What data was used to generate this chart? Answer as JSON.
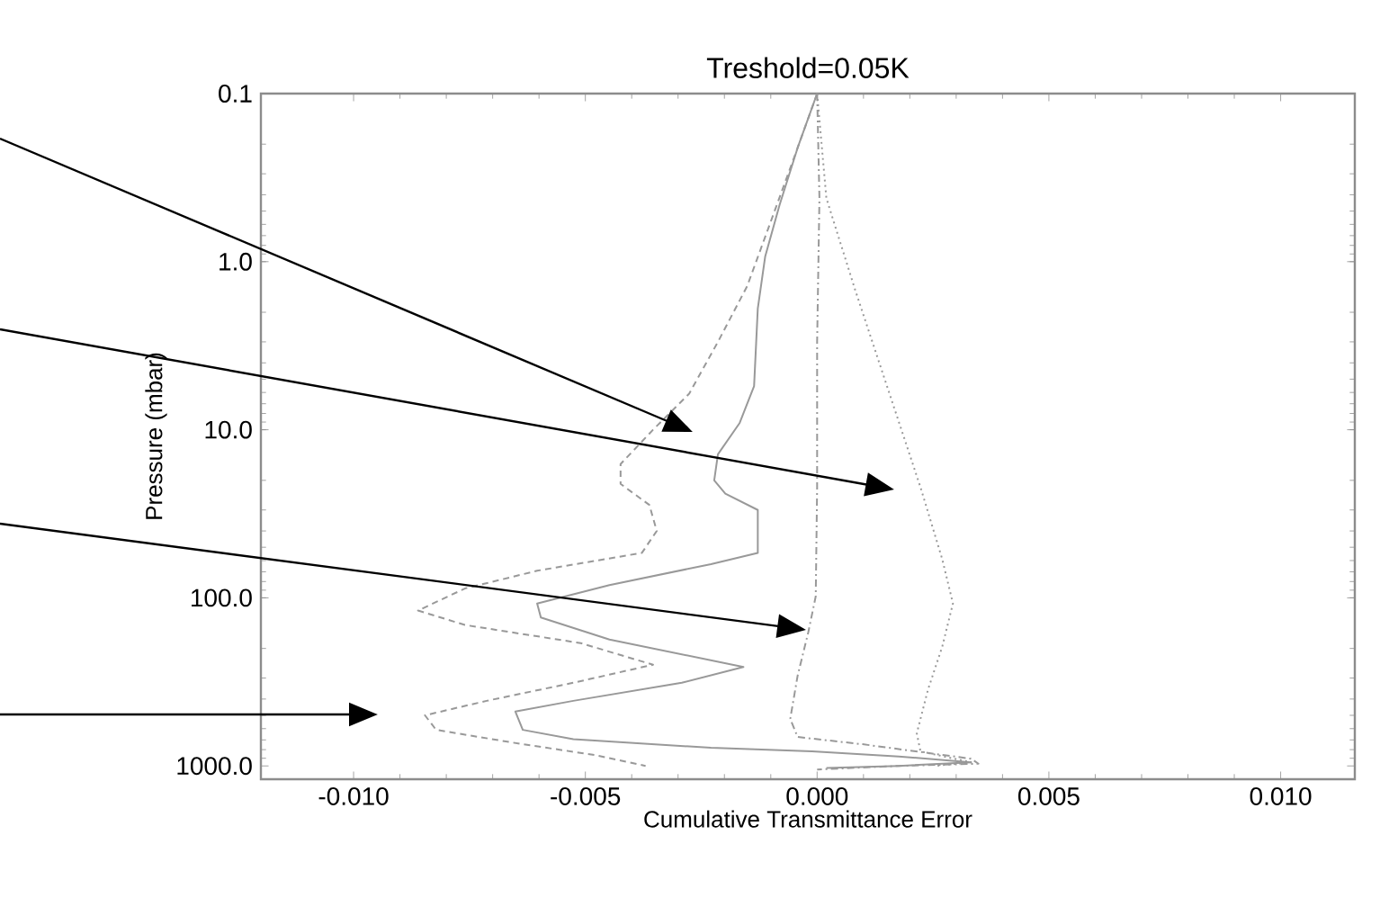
{
  "chart_data": {
    "type": "line",
    "title": "Treshold=0.05K",
    "xlabel": "Cumulative Transmittance Error",
    "ylabel": "Pressure (mbar)",
    "log": "y",
    "xlim": [
      -0.012,
      0.0116
    ],
    "ylim": [
      1200,
      0.1
    ],
    "xticks": [
      {
        "value": -0.01,
        "label": "-0.010"
      },
      {
        "value": -0.005,
        "label": "-0.005"
      },
      {
        "value": 0,
        "label": "0.000"
      },
      {
        "value": 0.005,
        "label": "0.005"
      },
      {
        "value": 0.01,
        "label": "0.010"
      }
    ],
    "yticks": [
      0.1,
      {
        "value": 1,
        "label": "1.0"
      },
      {
        "value": 10,
        "label": "10.0"
      },
      {
        "value": 100,
        "label": "100.0"
      },
      {
        "value": 1000,
        "label": "1000.0"
      }
    ],
    "series": [
      {
        "color": "#999999",
        "line_style": "solid",
        "x": [
          0,
          -0.00042,
          -0.00081,
          -0.00112,
          -0.00128,
          -0.00136,
          -0.00167,
          -0.00214,
          -0.00222,
          -0.00198,
          -0.00128,
          -0.00128,
          -0.00229,
          -0.00448,
          -0.00604,
          -0.00596,
          -0.00448,
          -0.00159,
          -0.00292,
          -0.00526,
          -0.00651,
          -0.00635,
          -0.00526,
          -0.00229,
          -0.00011,
          0.00176,
          0.00332,
          0.00176,
          0.0002
        ],
        "values": [
          0.1,
          0.21,
          0.46,
          0.93,
          1.9,
          5.5,
          9.1,
          14,
          20,
          24,
          30,
          54,
          63,
          84,
          108,
          131,
          177,
          258,
          320,
          410,
          475,
          610,
          693,
          780,
          820,
          879,
          951,
          1000,
          1030
        ]
      },
      {
        "color": "#999999",
        "line_style": "dashed",
        "x": [
          0,
          -0.00042,
          -0.00105,
          -0.00151,
          -0.00214,
          -0.00276,
          -0.00354,
          -0.00424,
          -0.00424,
          -0.00362,
          -0.00346,
          -0.00378,
          -0.00604,
          -0.0076,
          -0.00861,
          -0.0076,
          -0.0051,
          -0.00354,
          -0.00526,
          -0.00713,
          -0.00846,
          -0.00822,
          -0.00635,
          -0.00479,
          -0.0037
        ],
        "values": [
          0.1,
          0.21,
          0.63,
          1.4,
          3.0,
          6.1,
          10,
          16,
          21,
          28,
          40,
          54,
          69,
          88,
          119,
          145,
          186,
          250,
          320,
          410,
          500,
          610,
          743,
          861,
          1000
        ]
      },
      {
        "color": "#999999",
        "line_style": "dashdot",
        "x": [
          0,
          5e-05,
          0,
          0,
          -3e-05,
          -0.00019,
          -0.00042,
          -0.00058,
          -0.00042,
          0.00098,
          0.00332,
          0.00348,
          0.00176,
          0
        ],
        "values": [
          0.1,
          0.42,
          3.0,
          22,
          98,
          160,
          290,
          525,
          673,
          743,
          906,
          970,
          1000,
          1050
        ]
      },
      {
        "color": "#999999",
        "line_style": "dotted",
        "x": [
          0,
          0.0002,
          0.00083,
          0.00161,
          0.00223,
          0.0027,
          0.00293,
          0.0027,
          0.00239,
          0.00215,
          0.00223,
          0.00332,
          0.00254
        ],
        "values": [
          0.1,
          0.42,
          1.5,
          6.7,
          22,
          59,
          108,
          195,
          353,
          640,
          820,
          951,
          1000
        ]
      }
    ]
  }
}
